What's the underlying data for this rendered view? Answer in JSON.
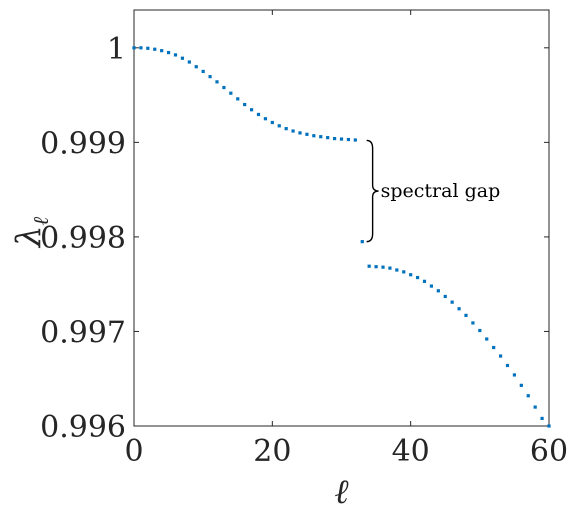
{
  "chart_data": {
    "type": "scatter",
    "title": "",
    "xlabel": "ℓ",
    "ylabel": "λ",
    "ylabel_subscript": "ℓ",
    "xlim": [
      0,
      60
    ],
    "ylim": [
      0.996,
      1.0004
    ],
    "xticks": [
      0,
      20,
      40,
      60
    ],
    "xtick_labels": [
      "0",
      "20",
      "40",
      "60"
    ],
    "yticks": [
      0.996,
      0.997,
      0.998,
      0.999,
      1.0
    ],
    "ytick_labels": [
      "0.996",
      "0.997",
      "0.998",
      "0.999",
      "1"
    ],
    "grid": false,
    "marker_color": "#0072BD",
    "annotation": {
      "text": "spectral gap",
      "x_brace": 34.5,
      "y_top": 0.99902,
      "y_bottom": 0.99795
    },
    "series": [
      {
        "values": [
          [
            0,
            1.0
          ],
          [
            1,
            1.0
          ],
          [
            2,
            0.999995
          ],
          [
            3,
            0.999985
          ],
          [
            4,
            0.99997
          ],
          [
            5,
            0.99995
          ],
          [
            6,
            0.999925
          ],
          [
            7,
            0.99989
          ],
          [
            8,
            0.99985
          ],
          [
            9,
            0.9998
          ],
          [
            10,
            0.99975
          ],
          [
            11,
            0.999695
          ],
          [
            12,
            0.99964
          ],
          [
            13,
            0.99958
          ],
          [
            14,
            0.99952
          ],
          [
            15,
            0.99946
          ],
          [
            16,
            0.9994
          ],
          [
            17,
            0.999345
          ],
          [
            18,
            0.999295
          ],
          [
            19,
            0.99925
          ],
          [
            20,
            0.99921
          ],
          [
            21,
            0.999175
          ],
          [
            22,
            0.999145
          ],
          [
            23,
            0.99912
          ],
          [
            24,
            0.9991
          ],
          [
            25,
            0.999085
          ],
          [
            26,
            0.99907
          ],
          [
            27,
            0.99906
          ],
          [
            28,
            0.99905
          ],
          [
            29,
            0.99904
          ],
          [
            30,
            0.999035
          ],
          [
            31,
            0.99903
          ],
          [
            32,
            0.999025
          ],
          [
            33,
            0.99795
          ],
          [
            34,
            0.99769
          ],
          [
            35,
            0.997685
          ],
          [
            36,
            0.99768
          ],
          [
            37,
            0.99767
          ],
          [
            38,
            0.99765
          ],
          [
            39,
            0.99763
          ],
          [
            40,
            0.9976
          ],
          [
            41,
            0.99757
          ],
          [
            42,
            0.99753
          ],
          [
            43,
            0.99748
          ],
          [
            44,
            0.99743
          ],
          [
            45,
            0.99737
          ],
          [
            46,
            0.99731
          ],
          [
            47,
            0.99724
          ],
          [
            48,
            0.99717
          ],
          [
            49,
            0.99709
          ],
          [
            50,
            0.99701
          ],
          [
            51,
            0.99692
          ],
          [
            52,
            0.99683
          ],
          [
            53,
            0.99674
          ],
          [
            54,
            0.99664
          ],
          [
            55,
            0.99654
          ],
          [
            56,
            0.99643
          ],
          [
            57,
            0.99632
          ],
          [
            58,
            0.9962
          ],
          [
            59,
            0.99608
          ],
          [
            60,
            0.996
          ]
        ]
      }
    ]
  }
}
